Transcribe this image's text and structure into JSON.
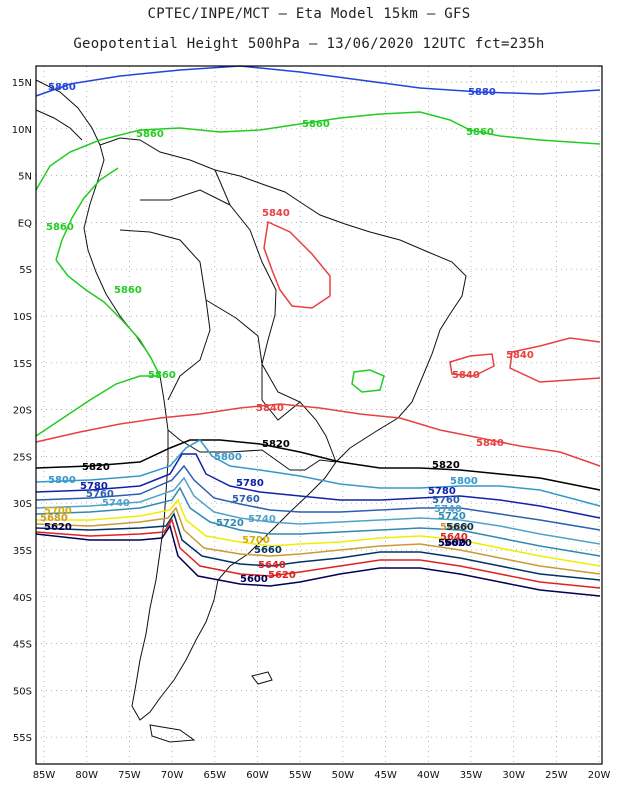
{
  "header": {
    "line1": "CPTEC/INPE/MCT  –  Eta Model 15km  –  GFS",
    "line2": "Geopotential Height 500hPa – 13/06/2020 12UTC fct=235h"
  },
  "axes": {
    "lat_labels": [
      "15N",
      "10N",
      "5N",
      "EQ",
      "5S",
      "10S",
      "15S",
      "20S",
      "25S",
      "30S",
      "35S",
      "40S",
      "45S",
      "50S",
      "55S"
    ],
    "lon_labels": [
      "85W",
      "80W",
      "75W",
      "70W",
      "65W",
      "60W",
      "55W",
      "50W",
      "45W",
      "40W",
      "35W",
      "30W",
      "25W",
      "20W"
    ]
  },
  "colors": {
    "c5860": "#22cc22",
    "c5880": "#2244dd",
    "c5840": "#e84040",
    "c5820": "#000000",
    "c5800": "#3399cc",
    "c5780": "#1122aa",
    "c5760": "#2b5fb0",
    "c5740": "#4fa3c8",
    "c5720": "#2e8bb0",
    "c5700": "#eeee00",
    "c5680": "#cc9933",
    "c5660": "#003366",
    "c5640": "#dd2222",
    "c5620": "#000055",
    "coast": "#111111"
  },
  "contour_labels": {
    "l5880a": "5880",
    "l5880b": "5880",
    "l5860a": "5860",
    "l5860b": "5860",
    "l5860c": "5860",
    "l5860d": "5860",
    "l5860e": "5860",
    "l5860f": "5860",
    "l5840a": "5840",
    "l5840b": "5840",
    "l5840c": "5840",
    "l5840d": "5840",
    "l5840e": "5840",
    "l5820a": "5820",
    "l5820b": "5820",
    "l5820c": "5820",
    "l5800a": "5800",
    "l5800b": "5800",
    "l5800c": "5800",
    "l5780a": "5780",
    "l5780b": "5780",
    "l5780c": "5780",
    "l5760a": "5760",
    "l5760b": "5760",
    "l5760c": "5760",
    "l5740a": "5740",
    "l5740b": "5740",
    "l5740c": "5740",
    "l5720a": "5720",
    "l5720b": "5720",
    "l5700a": "5700",
    "l5700b": "5700",
    "l5680a": "5680",
    "l5680b": "5680",
    "l5660a": "5660",
    "l5660b": "5660",
    "l5640a": "5640",
    "l5640b": "5640",
    "l5620a": "5620",
    "l5620b": "5620",
    "l5620c": "5620",
    "l5600a": "5600",
    "l5600b": "5600"
  }
}
